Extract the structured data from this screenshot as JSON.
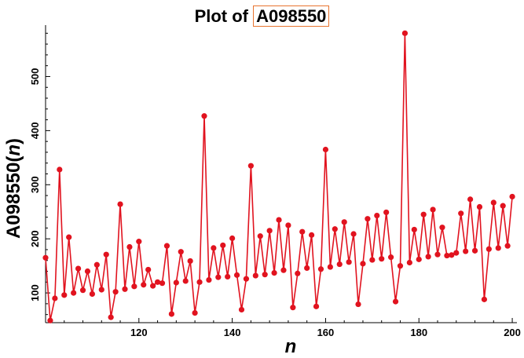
{
  "title": {
    "prefix": "Plot of ",
    "sequence": "A098550"
  },
  "axes": {
    "ylabel_main": "A098550(",
    "ylabel_var": "n",
    "ylabel_end": ")",
    "xlabel": "n"
  },
  "colors": {
    "series": "#e1131f",
    "axis": "#000000",
    "title_box": "#e8742f"
  },
  "chart_data": {
    "type": "line",
    "title": "Plot of A098550",
    "xlabel": "n",
    "ylabel": "A098550(n)",
    "xlim": [
      100,
      201
    ],
    "ylim": [
      45,
      595
    ],
    "xticks": [
      120,
      140,
      160,
      180,
      200
    ],
    "yticks": [
      100,
      200,
      300,
      400,
      500
    ],
    "grid": false,
    "series": [
      {
        "markers": true,
        "x": [
          100,
          101,
          102,
          103,
          104,
          105,
          106,
          107,
          108,
          109,
          110,
          111,
          112,
          113,
          114,
          115,
          116,
          117,
          118,
          119,
          120,
          121,
          122,
          123,
          124,
          125,
          126,
          127,
          128,
          129,
          130,
          131,
          132,
          133,
          134,
          135,
          136,
          137,
          138,
          139,
          140,
          141,
          142,
          143,
          144,
          145,
          146,
          147,
          148,
          149,
          150,
          151,
          152,
          153,
          154,
          155,
          156,
          157,
          158,
          159,
          160,
          161,
          162,
          163,
          164,
          165,
          166,
          167,
          168,
          169,
          170,
          171,
          172,
          173,
          174,
          175,
          176,
          177,
          178,
          179,
          180,
          181,
          182,
          183,
          184,
          185,
          186,
          187,
          188,
          189,
          190,
          191,
          192,
          193,
          194,
          195,
          196,
          197,
          198,
          199,
          200
        ],
        "y": [
          165,
          49,
          90,
          328,
          96,
          203,
          100,
          145,
          105,
          140,
          98,
          152,
          106,
          171,
          55,
          102,
          264,
          107,
          185,
          112,
          195,
          115,
          143,
          113,
          120,
          118,
          187,
          61,
          119,
          176,
          122,
          159,
          63,
          120,
          427,
          124,
          183,
          129,
          188,
          130,
          201,
          133,
          69,
          126,
          335,
          132,
          205,
          134,
          215,
          137,
          235,
          142,
          225,
          73,
          136,
          213,
          146,
          207,
          75,
          144,
          365,
          148,
          218,
          153,
          231,
          157,
          209,
          79,
          154,
          237,
          161,
          243,
          163,
          249,
          166,
          84,
          150,
          580,
          156,
          217,
          162,
          245,
          167,
          254,
          171,
          221,
          169,
          170,
          174,
          247,
          177,
          273,
          178,
          259,
          88,
          181,
          267,
          183,
          261,
          187,
          278
        ]
      }
    ]
  }
}
